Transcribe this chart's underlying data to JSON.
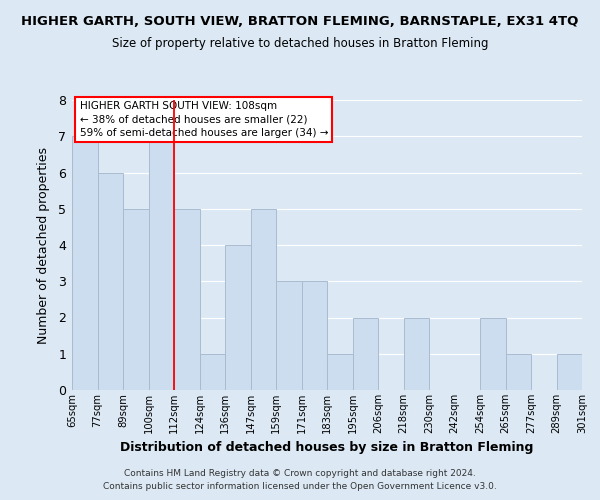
{
  "title": "HIGHER GARTH, SOUTH VIEW, BRATTON FLEMING, BARNSTAPLE, EX31 4TQ",
  "subtitle": "Size of property relative to detached houses in Bratton Fleming",
  "xlabel": "Distribution of detached houses by size in Bratton Fleming",
  "ylabel": "Number of detached properties",
  "bin_labels": [
    "65sqm",
    "77sqm",
    "89sqm",
    "100sqm",
    "112sqm",
    "124sqm",
    "136sqm",
    "147sqm",
    "159sqm",
    "171sqm",
    "183sqm",
    "195sqm",
    "206sqm",
    "218sqm",
    "230sqm",
    "242sqm",
    "254sqm",
    "265sqm",
    "277sqm",
    "289sqm",
    "301sqm"
  ],
  "bar_heights": [
    7,
    6,
    5,
    7,
    5,
    1,
    4,
    5,
    3,
    3,
    1,
    2,
    0,
    2,
    0,
    0,
    2,
    1,
    0,
    1
  ],
  "bar_color": "#ccddf0",
  "bar_edge_color": "#aabbd0",
  "grid_color": "#ffffff",
  "bg_color": "#dce9f5",
  "red_line_index": 4,
  "annotation_title": "HIGHER GARTH SOUTH VIEW: 108sqm",
  "annotation_line1": "← 38% of detached houses are smaller (22)",
  "annotation_line2": "59% of semi-detached houses are larger (34) →",
  "ylim": [
    0,
    8
  ],
  "yticks": [
    0,
    1,
    2,
    3,
    4,
    5,
    6,
    7,
    8
  ],
  "footer1": "Contains HM Land Registry data © Crown copyright and database right 2024.",
  "footer2": "Contains public sector information licensed under the Open Government Licence v3.0."
}
